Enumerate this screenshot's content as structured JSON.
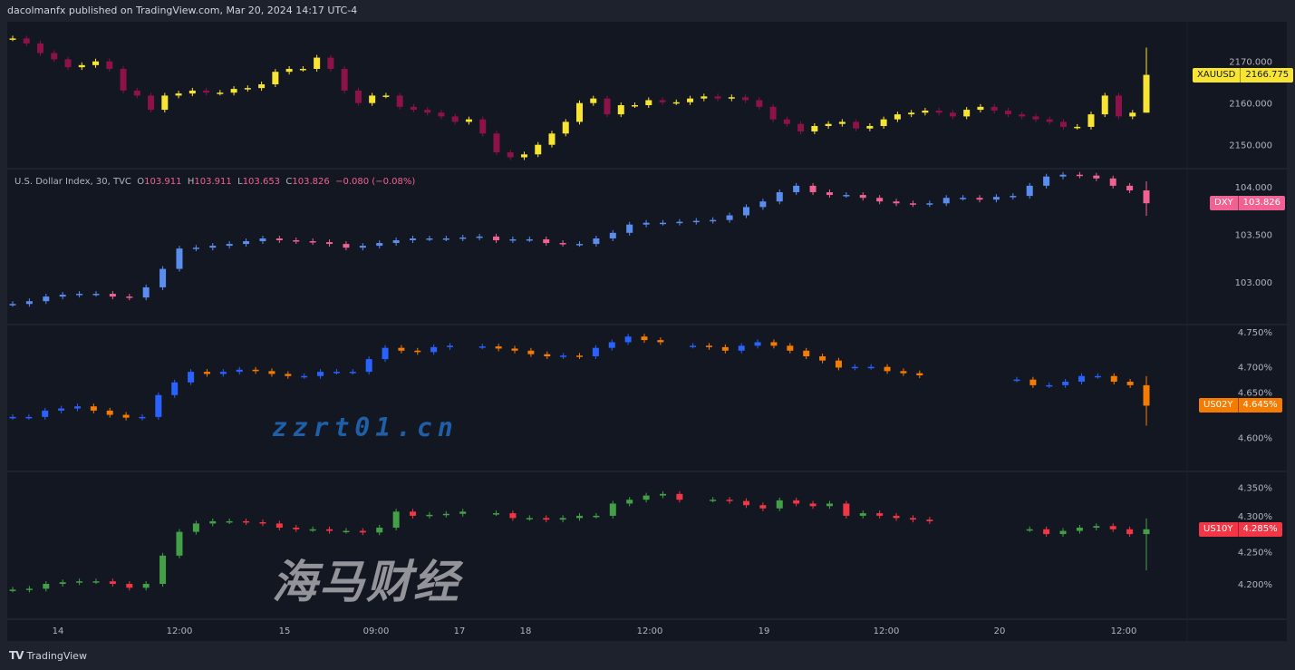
{
  "header": {
    "published": "dacolmanfx published on TradingView.com, Mar 20, 2024 14:17 UTC-4"
  },
  "legend": {
    "title": "U.S. Dollar Index, 30, TVC",
    "o_label": "O",
    "o": "103.911",
    "h_label": "H",
    "h": "103.911",
    "l_label": "L",
    "l": "103.653",
    "c_label": "C",
    "c": "103.826",
    "change": "−0.080 (−0.08%)"
  },
  "footer": {
    "logo": "TradingView"
  },
  "watermark": {
    "cn": "海马财经",
    "url": "zzrt01.cn"
  },
  "chart_data": [
    {
      "type": "candlestick",
      "symbol": "XAUUSD",
      "last": "2166.775",
      "up_color": "#f7e433",
      "down_color": "#8c1248",
      "label_color": "#f7e433",
      "y_ticks": [
        "2170.000",
        "2160.000",
        "2150.000"
      ],
      "y_tick_values": [
        2170,
        2160,
        2150
      ],
      "ylim": [
        2144.5,
        2179.5
      ],
      "closes": [
        2175.5,
        2174.3,
        2172.0,
        2170.5,
        2168.6,
        2169.1,
        2170.0,
        2168.2,
        2163.0,
        2161.8,
        2158.4,
        2161.8,
        2162.3,
        2163.0,
        2162.5,
        2162.5,
        2163.4,
        2163.6,
        2164.5,
        2167.5,
        2168.2,
        2168.2,
        2170.9,
        2168.2,
        2163.0,
        2160.0,
        2161.8,
        2161.8,
        2159.1,
        2158.4,
        2157.7,
        2156.8,
        2155.5,
        2156.1,
        2152.7,
        2148.2,
        2147.0,
        2147.7,
        2150.0,
        2152.7,
        2155.5,
        2160.0,
        2161.1,
        2157.3,
        2159.5,
        2159.5,
        2160.7,
        2160.2,
        2160.2,
        2161.1,
        2161.6,
        2161.1,
        2161.4,
        2160.7,
        2159.1,
        2156.1,
        2155.0,
        2153.2,
        2154.5,
        2155.0,
        2155.5,
        2153.9,
        2154.5,
        2156.1,
        2157.3,
        2157.7,
        2158.2,
        2157.7,
        2156.8,
        2158.4,
        2159.1,
        2158.2,
        2157.3,
        2156.8,
        2156.1,
        2155.5,
        2154.3,
        2154.3,
        2157.3,
        2161.8,
        2156.8,
        2157.7,
        2166.775
      ]
    },
    {
      "type": "candlestick",
      "symbol": "DXY",
      "last": "103.826",
      "up_color": "#5b8def",
      "down_color": "#f06292",
      "label_color": "#f06292",
      "y_ticks": [
        "104.000",
        "103.500",
        "103.000"
      ],
      "y_tick_values": [
        104,
        103.5,
        103
      ],
      "ylim": [
        102.56,
        104.19
      ],
      "closes": [
        102.767,
        102.796,
        102.845,
        102.864,
        102.874,
        102.874,
        102.845,
        102.835,
        102.942,
        103.136,
        103.35,
        103.359,
        103.379,
        103.398,
        103.427,
        103.456,
        103.437,
        103.427,
        103.417,
        103.398,
        103.359,
        103.379,
        103.408,
        103.437,
        103.456,
        103.456,
        103.456,
        103.466,
        103.476,
        103.437,
        103.447,
        103.447,
        103.408,
        103.398,
        103.398,
        103.456,
        103.515,
        103.602,
        103.621,
        103.621,
        103.631,
        103.641,
        103.65,
        103.699,
        103.786,
        103.845,
        103.942,
        104.01,
        103.942,
        103.913,
        103.913,
        103.883,
        103.845,
        103.825,
        103.816,
        103.825,
        103.883,
        103.883,
        103.864,
        103.893,
        103.903,
        104.01,
        104.107,
        104.126,
        104.117,
        104.087,
        104.01,
        103.961,
        103.826
      ]
    },
    {
      "type": "candlestick",
      "symbol": "US02Y",
      "last": "4.645%",
      "up_color": "#2962ff",
      "down_color": "#f57c00",
      "label_color": "#f57c00",
      "y_ticks": [
        "4.750%",
        "4.700%",
        "4.650%",
        "4.600%"
      ],
      "y_tick_values": [
        4.75,
        4.7,
        4.65,
        4.6
      ],
      "ylim": [
        4.553,
        4.76
      ],
      "closes": [
        4.629,
        4.629,
        4.638,
        4.641,
        4.644,
        4.638,
        4.632,
        4.628,
        4.629,
        4.66,
        4.678,
        4.693,
        4.69,
        4.693,
        4.696,
        4.694,
        4.69,
        4.687,
        4.687,
        4.693,
        4.693,
        4.693,
        4.711,
        4.727,
        4.723,
        4.721,
        4.728,
        4.73,
        null,
        4.729,
        4.726,
        4.723,
        4.718,
        4.715,
        4.716,
        4.715,
        4.727,
        4.735,
        4.743,
        4.738,
        4.735,
        null,
        4.73,
        4.728,
        4.723,
        4.73,
        4.735,
        4.73,
        4.723,
        4.715,
        4.709,
        4.699,
        4.7,
        4.7,
        4.694,
        4.691,
        4.688,
        null,
        null,
        null,
        null,
        null,
        4.682,
        4.674,
        4.674,
        4.679,
        4.687,
        4.687,
        4.679,
        4.674,
        4.645
      ]
    },
    {
      "type": "candlestick",
      "symbol": "US10Y",
      "last": "4.285%",
      "up_color": "#43a047",
      "down_color": "#f23645",
      "label_color": "#f23645",
      "y_ticks": [
        "4.350%",
        "4.300%",
        "4.250%",
        "4.200%"
      ],
      "y_tick_values": [
        4.35,
        4.3,
        4.25,
        4.2
      ],
      "ylim": [
        4.145,
        4.375
      ],
      "closes": [
        4.191,
        4.1925,
        4.2,
        4.2025,
        4.204,
        4.204,
        4.2,
        4.194,
        4.2,
        4.244,
        4.281,
        4.294,
        4.2975,
        4.2975,
        4.296,
        4.294,
        4.2875,
        4.285,
        4.285,
        4.2825,
        4.2825,
        4.28,
        4.2875,
        4.3125,
        4.306,
        4.3075,
        4.309,
        4.3125,
        null,
        4.31,
        4.3025,
        4.3025,
        4.3,
        4.3025,
        4.306,
        4.306,
        4.325,
        4.331,
        4.3375,
        4.34,
        4.331,
        null,
        4.331,
        4.329,
        4.3225,
        4.3175,
        4.33,
        4.325,
        4.321,
        4.325,
        4.306,
        4.31,
        4.306,
        4.3025,
        4.3,
        4.2975,
        null,
        null,
        null,
        null,
        null,
        4.285,
        4.2775,
        4.2825,
        4.2875,
        4.29,
        4.285,
        4.2775,
        4.285
      ]
    }
  ],
  "time_axis": {
    "labels": [
      "14",
      "12:00",
      "15",
      "09:00",
      "17",
      "18",
      "12:00",
      "19",
      "12:00",
      "20",
      "12:00"
    ]
  }
}
